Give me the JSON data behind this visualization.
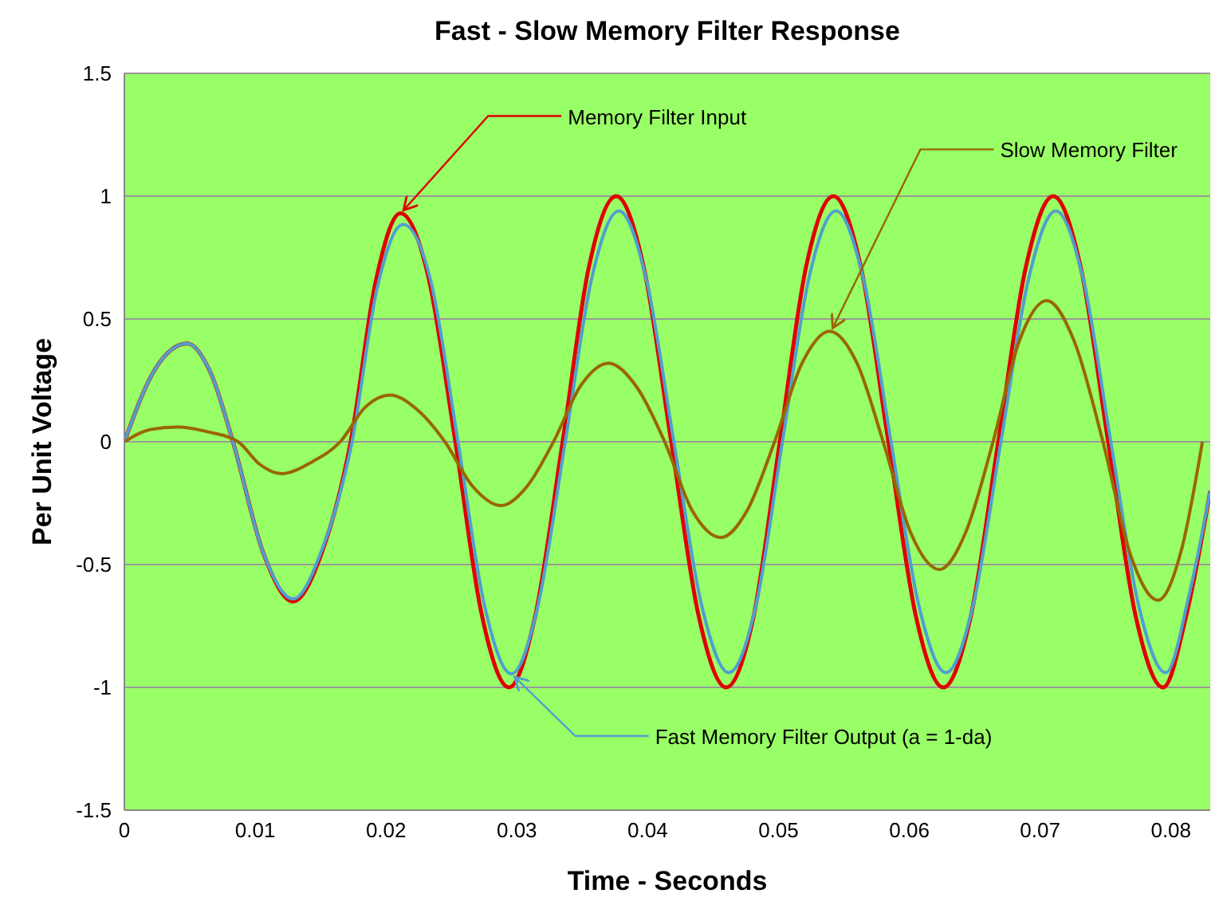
{
  "chart_data": {
    "type": "line",
    "title": "Fast - Slow Memory Filter Response",
    "xlabel": "Time - Seconds",
    "ylabel": "Per Unit Voltage",
    "xlim": [
      0,
      0.083
    ],
    "xticks": [
      0,
      0.01,
      0.02,
      0.03,
      0.04,
      0.05,
      0.06,
      0.07,
      0.08
    ],
    "ylim": [
      -1.5,
      1.5
    ],
    "yticks": [
      -1.5,
      -1,
      -0.5,
      0,
      0.5,
      1,
      1.5
    ],
    "grid": "y",
    "legend": false,
    "marker": "none",
    "line_style": "solid",
    "series": [
      {
        "color": "#e00000",
        "x": [
          0,
          0.0024,
          0.0048,
          0.0066,
          0.0083,
          0.0106,
          0.0129,
          0.0151,
          0.0173,
          0.0192,
          0.0211,
          0.0232,
          0.0253,
          0.0273,
          0.0294,
          0.0314,
          0.0335,
          0.0355,
          0.0376,
          0.0397,
          0.0418,
          0.0439,
          0.046,
          0.0481,
          0.0501,
          0.0521,
          0.0542,
          0.0563,
          0.0584,
          0.0605,
          0.0626,
          0.0647,
          0.0668,
          0.0689,
          0.071,
          0.0731,
          0.0752,
          0.0773,
          0.0794,
          0.0812,
          0.083
        ],
        "values": [
          0,
          0.3,
          0.4,
          0.28,
          0,
          -0.45,
          -0.65,
          -0.45,
          0,
          0.65,
          0.93,
          0.68,
          0,
          -0.7,
          -1,
          -0.71,
          0,
          0.71,
          1,
          0.71,
          0,
          -0.71,
          -1,
          -0.71,
          0,
          0.71,
          1,
          0.71,
          0,
          -0.71,
          -1,
          -0.71,
          0,
          0.71,
          1,
          0.71,
          0,
          -0.71,
          -1,
          -0.7,
          -0.2
        ]
      },
      {
        "color": "#4f9fd0",
        "x": [
          0,
          0.0024,
          0.0048,
          0.0066,
          0.0083,
          0.0106,
          0.0129,
          0.0151,
          0.0174,
          0.0193,
          0.0213,
          0.0234,
          0.0255,
          0.0275,
          0.0296,
          0.0316,
          0.0337,
          0.0357,
          0.0378,
          0.0399,
          0.042,
          0.0441,
          0.0462,
          0.0483,
          0.0503,
          0.0523,
          0.0544,
          0.0565,
          0.0586,
          0.0607,
          0.0628,
          0.0649,
          0.067,
          0.0691,
          0.0712,
          0.0733,
          0.0754,
          0.0775,
          0.0796,
          0.0814,
          0.083
        ],
        "values": [
          0,
          0.3,
          0.4,
          0.28,
          0,
          -0.45,
          -0.64,
          -0.44,
          0,
          0.62,
          0.885,
          0.66,
          0,
          -0.66,
          -0.945,
          -0.67,
          0,
          0.66,
          0.94,
          0.66,
          0,
          -0.66,
          -0.94,
          -0.66,
          0,
          0.66,
          0.94,
          0.66,
          0,
          -0.66,
          -0.94,
          -0.66,
          0,
          0.66,
          0.94,
          0.66,
          0,
          -0.66,
          -0.94,
          -0.62,
          -0.2
        ]
      },
      {
        "color": "#996600",
        "x": [
          0,
          0.002,
          0.0041,
          0.0064,
          0.0087,
          0.0103,
          0.012,
          0.0144,
          0.0165,
          0.0184,
          0.0203,
          0.0224,
          0.0245,
          0.0266,
          0.0288,
          0.0308,
          0.0328,
          0.0349,
          0.037,
          0.0392,
          0.0413,
          0.0434,
          0.0456,
          0.0476,
          0.0497,
          0.0518,
          0.0539,
          0.056,
          0.058,
          0.0601,
          0.0623,
          0.0643,
          0.0664,
          0.0684,
          0.0705,
          0.0726,
          0.0748,
          0.0769,
          0.079,
          0.0808,
          0.0824
        ],
        "values": [
          0,
          0.05,
          0.06,
          0.04,
          0,
          -0.09,
          -0.13,
          -0.08,
          0,
          0.14,
          0.19,
          0.13,
          0,
          -0.18,
          -0.26,
          -0.18,
          0,
          0.23,
          0.32,
          0.22,
          0,
          -0.28,
          -0.39,
          -0.28,
          0,
          0.32,
          0.45,
          0.32,
          0,
          -0.37,
          -0.52,
          -0.37,
          0,
          0.41,
          0.575,
          0.41,
          0,
          -0.46,
          -0.645,
          -0.44,
          0
        ]
      }
    ],
    "annotations": [
      {
        "text": "Memory Filter Input",
        "x": 0.0211,
        "y": 0.93
      },
      {
        "text": "Fast Memory Filter Output (a = 1-da)",
        "x": 0.0296,
        "y": -0.945
      },
      {
        "text": "Slow Memory Filter",
        "x": 0.0539,
        "y": 0.45
      }
    ]
  }
}
